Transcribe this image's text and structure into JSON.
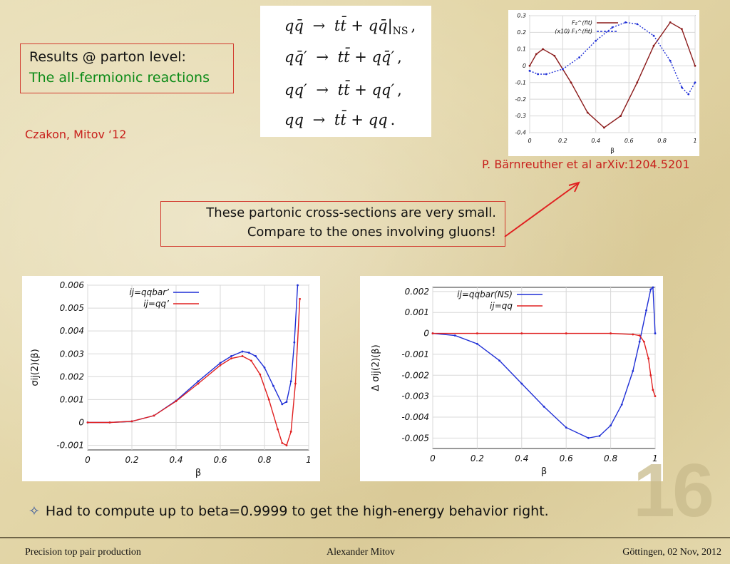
{
  "results_box": {
    "line1": "Results @ parton level:",
    "line2": "The all-fermionic reactions",
    "line2_color": "#0a8a16"
  },
  "citation": "Czakon, Mitov ‘12",
  "equations": [
    {
      "lhs": "qq̄",
      "arrow": "→",
      "rhs": "tt̄ + qq̄|",
      "sub": "NS",
      "tail": ","
    },
    {
      "lhs": "qq̄′",
      "arrow": "→",
      "rhs": "tt̄ + qq̄′",
      "sub": "",
      "tail": ","
    },
    {
      "lhs": "qq′",
      "arrow": "→",
      "rhs": "tt̄ + qq′",
      "sub": "",
      "tail": ","
    },
    {
      "lhs": "qq",
      "arrow": "→",
      "rhs": "tt̄ + qq",
      "sub": "",
      "tail": "."
    }
  ],
  "note": {
    "line1": "These partonic cross-sections are very small.",
    "line2": "Compare to the ones involving gluons!"
  },
  "reference": "P. Bärnreuther et al arXiv:1204.5201",
  "bullet": {
    "icon": "four-point-star-icon",
    "text": "Had to compute up to beta=0.9999 to get the high-energy behavior right."
  },
  "slide_number": "16",
  "footer": {
    "left": "Precision top pair production",
    "center": "Alexander Mitov",
    "right": "Göttingen, 02 Nov, 2012"
  },
  "colors": {
    "accent_red": "#c8201c",
    "box_border": "#d23a2e",
    "series_blue": "#1f2fd6",
    "series_red": "#e02020"
  },
  "chart_data": [
    {
      "type": "line",
      "xlabel": "β",
      "ylabel": "",
      "xlim": [
        0,
        1
      ],
      "ylim": [
        -0.4,
        0.3
      ],
      "xticks": [
        "0",
        "0.2",
        "0.4",
        "0.6",
        "0.8",
        "1"
      ],
      "yticks": [
        "0.3",
        "0.2",
        "0.1",
        "0",
        "-0.1",
        "-0.2",
        "-0.3",
        "-0.4"
      ],
      "grid": true,
      "legend_position": "top-right",
      "series": [
        {
          "name": "F₂^(fit)",
          "label_prefix": "",
          "color": "#8b1a1a",
          "x": [
            0,
            0.04,
            0.08,
            0.15,
            0.25,
            0.35,
            0.45,
            0.55,
            0.65,
            0.75,
            0.85,
            0.92,
            1.0
          ],
          "y": [
            0.0,
            0.07,
            0.1,
            0.06,
            -0.1,
            -0.28,
            -0.37,
            -0.3,
            -0.1,
            0.12,
            0.26,
            0.22,
            0.0
          ]
        },
        {
          "name": "F₁^(fit)",
          "label_prefix": "(x10)",
          "color": "#1f2fd6",
          "x": [
            0,
            0.05,
            0.1,
            0.2,
            0.3,
            0.4,
            0.5,
            0.58,
            0.65,
            0.75,
            0.85,
            0.92,
            0.96,
            1.0
          ],
          "y": [
            -0.03,
            -0.05,
            -0.05,
            -0.02,
            0.05,
            0.15,
            0.23,
            0.26,
            0.25,
            0.18,
            0.03,
            -0.13,
            -0.17,
            -0.1
          ]
        }
      ]
    },
    {
      "type": "line",
      "xlabel": "β",
      "ylabel": "σij(2)(β)",
      "xlim": [
        0,
        1
      ],
      "ylim": [
        -0.0012,
        0.006
      ],
      "xticks": [
        "0",
        "0.2",
        "0.4",
        "0.6",
        "0.8",
        "1"
      ],
      "yticks": [
        "0.006",
        "0.005",
        "0.004",
        "0.003",
        "0.002",
        "0.001",
        "0",
        "-0.001"
      ],
      "grid": true,
      "legend_position": "top-left",
      "series": [
        {
          "name": "ij=qqbar’",
          "color": "#1f2fd6",
          "x": [
            0,
            0.1,
            0.2,
            0.3,
            0.4,
            0.5,
            0.6,
            0.65,
            0.7,
            0.73,
            0.76,
            0.8,
            0.84,
            0.88,
            0.9,
            0.92,
            0.935,
            0.95
          ],
          "y": [
            0,
            0.0,
            5e-05,
            0.0003,
            0.00095,
            0.0018,
            0.0026,
            0.0029,
            0.0031,
            0.00305,
            0.0029,
            0.0024,
            0.0016,
            0.0008,
            0.0009,
            0.0018,
            0.0035,
            0.006
          ]
        },
        {
          "name": "ij=qq’",
          "color": "#e02020",
          "x": [
            0,
            0.1,
            0.2,
            0.3,
            0.4,
            0.5,
            0.6,
            0.65,
            0.7,
            0.74,
            0.78,
            0.82,
            0.86,
            0.88,
            0.9,
            0.92,
            0.94,
            0.96
          ],
          "y": [
            0,
            0.0,
            5e-05,
            0.0003,
            0.00093,
            0.0017,
            0.0025,
            0.0028,
            0.0029,
            0.0027,
            0.0021,
            0.001,
            -0.0003,
            -0.0009,
            -0.001,
            -0.0004,
            0.0017,
            0.0054
          ]
        }
      ]
    },
    {
      "type": "line",
      "xlabel": "β",
      "ylabel": "Δ σij(2)(β)",
      "xlim": [
        0,
        1
      ],
      "ylim": [
        -0.0055,
        0.0022
      ],
      "xticks": [
        "0",
        "0.2",
        "0.4",
        "0.6",
        "0.8",
        "1"
      ],
      "yticks": [
        "0.002",
        "0.001",
        "0",
        "-0.001",
        "-0.002",
        "-0.003",
        "-0.004",
        "-0.005"
      ],
      "grid": true,
      "legend_position": "top-left",
      "series": [
        {
          "name": "ij=qqbar(NS)",
          "color": "#1f2fd6",
          "x": [
            0,
            0.1,
            0.2,
            0.3,
            0.4,
            0.5,
            0.6,
            0.7,
            0.75,
            0.8,
            0.85,
            0.9,
            0.93,
            0.96,
            0.98,
            0.99,
            1.0
          ],
          "y": [
            0,
            -0.0001,
            -0.0005,
            -0.0013,
            -0.0024,
            -0.0035,
            -0.0045,
            -0.005,
            -0.0049,
            -0.0044,
            -0.0034,
            -0.0018,
            -0.0004,
            0.0011,
            0.0021,
            0.0022,
            0.0
          ]
        },
        {
          "name": "ij=qq",
          "color": "#e02020",
          "x": [
            0,
            0.2,
            0.4,
            0.6,
            0.8,
            0.9,
            0.93,
            0.95,
            0.97,
            0.98,
            0.99,
            1.0
          ],
          "y": [
            0,
            0,
            0,
            0,
            0,
            -5e-05,
            -0.0001,
            -0.0004,
            -0.0012,
            -0.002,
            -0.0027,
            -0.003
          ]
        }
      ]
    }
  ]
}
